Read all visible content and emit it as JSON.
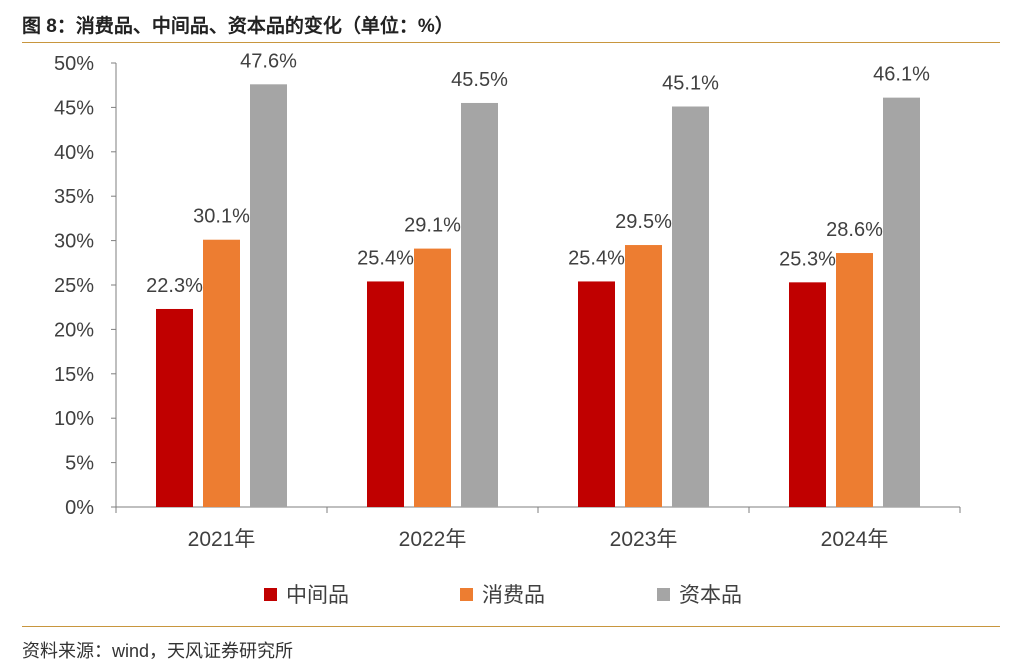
{
  "title": "图 8：消费品、中间品、资本品的变化（单位：%）",
  "source": "资料来源：wind，天风证券研究所",
  "colors": {
    "series_0": "#c00000",
    "series_1": "#ed7d31",
    "series_2": "#a5a5a5",
    "axis": "#7f7f7f",
    "rule": "#c8963e"
  },
  "chart_data": {
    "type": "bar",
    "title": "图 8：消费品、中间品、资本品的变化（单位：%）",
    "categories": [
      "2021年",
      "2022年",
      "2023年",
      "2024年"
    ],
    "series": [
      {
        "name": "中间品",
        "values": [
          22.3,
          25.4,
          25.4,
          25.3
        ],
        "labels": [
          "22.3%",
          "25.4%",
          "25.4%",
          "25.3%"
        ]
      },
      {
        "name": "消费品",
        "values": [
          30.1,
          29.1,
          29.5,
          28.6
        ],
        "labels": [
          "30.1%",
          "29.1%",
          "29.5%",
          "28.6%"
        ]
      },
      {
        "name": "资本品",
        "values": [
          47.6,
          45.5,
          45.1,
          46.1
        ],
        "labels": [
          "47.6%",
          "45.5%",
          "45.1%",
          "46.1%"
        ]
      }
    ],
    "ylim": [
      0,
      50
    ],
    "yticks": [
      0,
      5,
      10,
      15,
      20,
      25,
      30,
      35,
      40,
      45,
      50
    ],
    "ytick_labels": [
      "0%",
      "5%",
      "10%",
      "15%",
      "20%",
      "25%",
      "30%",
      "35%",
      "40%",
      "45%",
      "50%"
    ],
    "xlabel": "",
    "ylabel": "",
    "legend": "bottom-center",
    "grid": false
  }
}
